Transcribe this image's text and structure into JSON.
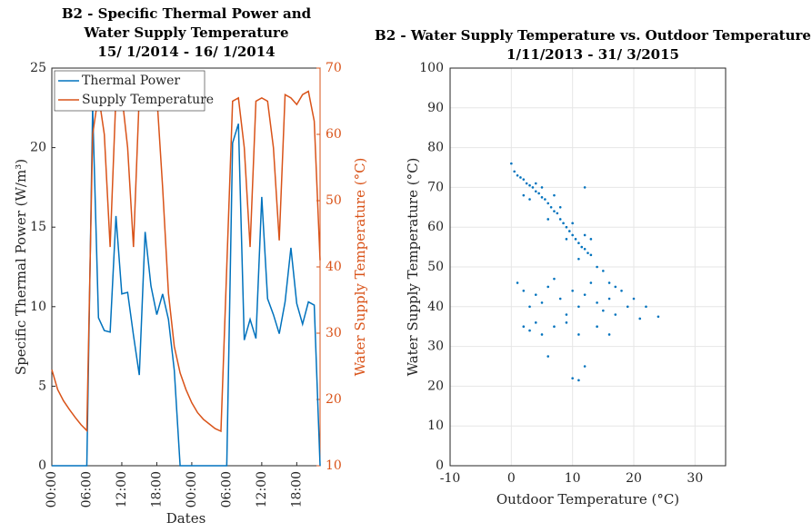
{
  "chart_data": [
    {
      "type": "line",
      "title": [
        "B2 - Specific Thermal Power and",
        "Water Supply Temperature",
        "15/ 1/2014 - 16/ 1/2014"
      ],
      "x_label": "Dates",
      "y_label": "Specific Thermal Power (W/m³)",
      "y2_label": "Water Supply Temperature (°C)",
      "x": [
        0,
        1,
        2,
        3,
        4,
        5,
        6,
        7,
        8,
        9,
        10,
        11,
        12,
        13,
        14,
        15,
        16,
        17,
        18,
        19,
        20,
        21,
        22,
        23,
        24,
        25,
        26,
        27,
        28,
        29,
        30,
        31,
        32,
        33,
        34,
        35,
        36,
        37,
        38,
        39,
        40,
        41,
        42,
        43,
        44,
        45,
        46
      ],
      "xlim": [
        0,
        46
      ],
      "xticks": [
        {
          "value": 0,
          "label": "00:00"
        },
        {
          "value": 6,
          "label": "06:00"
        },
        {
          "value": 12,
          "label": "12:00"
        },
        {
          "value": 18,
          "label": "18:00"
        },
        {
          "value": 24,
          "label": "00:00"
        },
        {
          "value": 30,
          "label": "06:00"
        },
        {
          "value": 36,
          "label": "12:00"
        },
        {
          "value": 42,
          "label": "18:00"
        }
      ],
      "ylim": [
        0,
        25
      ],
      "yticks": [
        0,
        5,
        10,
        15,
        20,
        25
      ],
      "y2lim": [
        10,
        70
      ],
      "y2ticks": [
        10,
        20,
        30,
        40,
        50,
        60,
        70
      ],
      "legend": "upper left",
      "series": [
        {
          "name": "Thermal Power",
          "color": "#0072bd",
          "values": [
            0,
            0,
            0,
            0,
            0,
            0,
            0,
            22.5,
            9.3,
            8.5,
            8.4,
            15.7,
            10.8,
            10.9,
            8.2,
            5.7,
            14.7,
            11.3,
            9.5,
            10.8,
            9.2,
            6,
            0,
            0,
            0,
            0,
            0,
            0,
            0,
            0,
            0,
            20.3,
            21.5,
            7.9,
            9.2,
            8,
            16.9,
            10.5,
            9.5,
            8.3,
            10.3,
            13.7,
            10.2,
            8.9,
            10.3,
            10.1,
            0
          ]
        },
        {
          "name": "Supply Temperature",
          "color": "#d95319",
          "axis": "y2",
          "values": [
            24.5,
            21.5,
            19.8,
            18.5,
            17.3,
            16.2,
            15.3,
            60,
            66,
            60,
            43,
            66,
            66,
            58,
            43,
            66,
            65.5,
            65.5,
            66,
            52,
            36,
            28,
            24,
            21.5,
            19.5,
            18,
            17,
            16.3,
            15.6,
            15.2,
            40,
            65,
            65.5,
            58,
            43,
            65,
            65.5,
            65,
            58,
            44,
            66,
            65.5,
            64.5,
            66,
            66.5,
            62,
            41
          ]
        }
      ]
    },
    {
      "type": "scatter",
      "title": [
        "B2 - Water Supply Temperature vs. Outdoor Temperature",
        "1/11/2013 - 31/ 3/2015"
      ],
      "x_label": "Outdoor Temperature (°C)",
      "y_label": "Water Supply Temperature (°C)",
      "color": "#0072bd",
      "grid": true,
      "xlim": [
        -10,
        35
      ],
      "xticks": [
        -10,
        0,
        10,
        20,
        30
      ],
      "ylim": [
        0,
        100
      ],
      "yticks": [
        0,
        10,
        20,
        30,
        40,
        50,
        60,
        70,
        80,
        90,
        100
      ],
      "x": [
        0,
        0.5,
        1,
        1.5,
        2,
        2.5,
        3,
        3.5,
        4,
        4.5,
        5,
        5.5,
        6,
        6.5,
        7,
        7.5,
        8,
        8.5,
        9,
        9.5,
        10,
        10.5,
        11,
        11.5,
        12,
        12.5,
        13,
        2,
        3,
        4,
        5,
        6,
        7,
        8,
        9,
        10,
        11,
        12,
        13,
        14,
        15,
        16,
        17,
        18,
        20,
        22,
        24,
        1,
        2,
        3,
        4,
        5,
        6,
        7,
        8,
        9,
        10,
        11,
        12,
        13,
        14,
        15,
        16,
        17,
        19,
        21,
        2,
        3,
        4,
        5,
        7,
        9,
        11,
        14,
        16,
        6,
        10,
        11,
        12,
        12
      ],
      "y": [
        76,
        74,
        73,
        72.5,
        72,
        71,
        70.5,
        70,
        69,
        68.5,
        67.5,
        67,
        66,
        65,
        64,
        63.5,
        62,
        61,
        60,
        59,
        58,
        57,
        56,
        55,
        54.5,
        53.5,
        53,
        68,
        67,
        71,
        70,
        62,
        68,
        65,
        57,
        61,
        52,
        58,
        57,
        50,
        49,
        46,
        45,
        44,
        42,
        40,
        37.5,
        46,
        44,
        40,
        43,
        41,
        45,
        47,
        42,
        38,
        44,
        40,
        43,
        46,
        41,
        39,
        42,
        38,
        40,
        37,
        35,
        34,
        36,
        33,
        35,
        36,
        33,
        35,
        33,
        27.5,
        22,
        21.5,
        25,
        70
      ]
    }
  ]
}
